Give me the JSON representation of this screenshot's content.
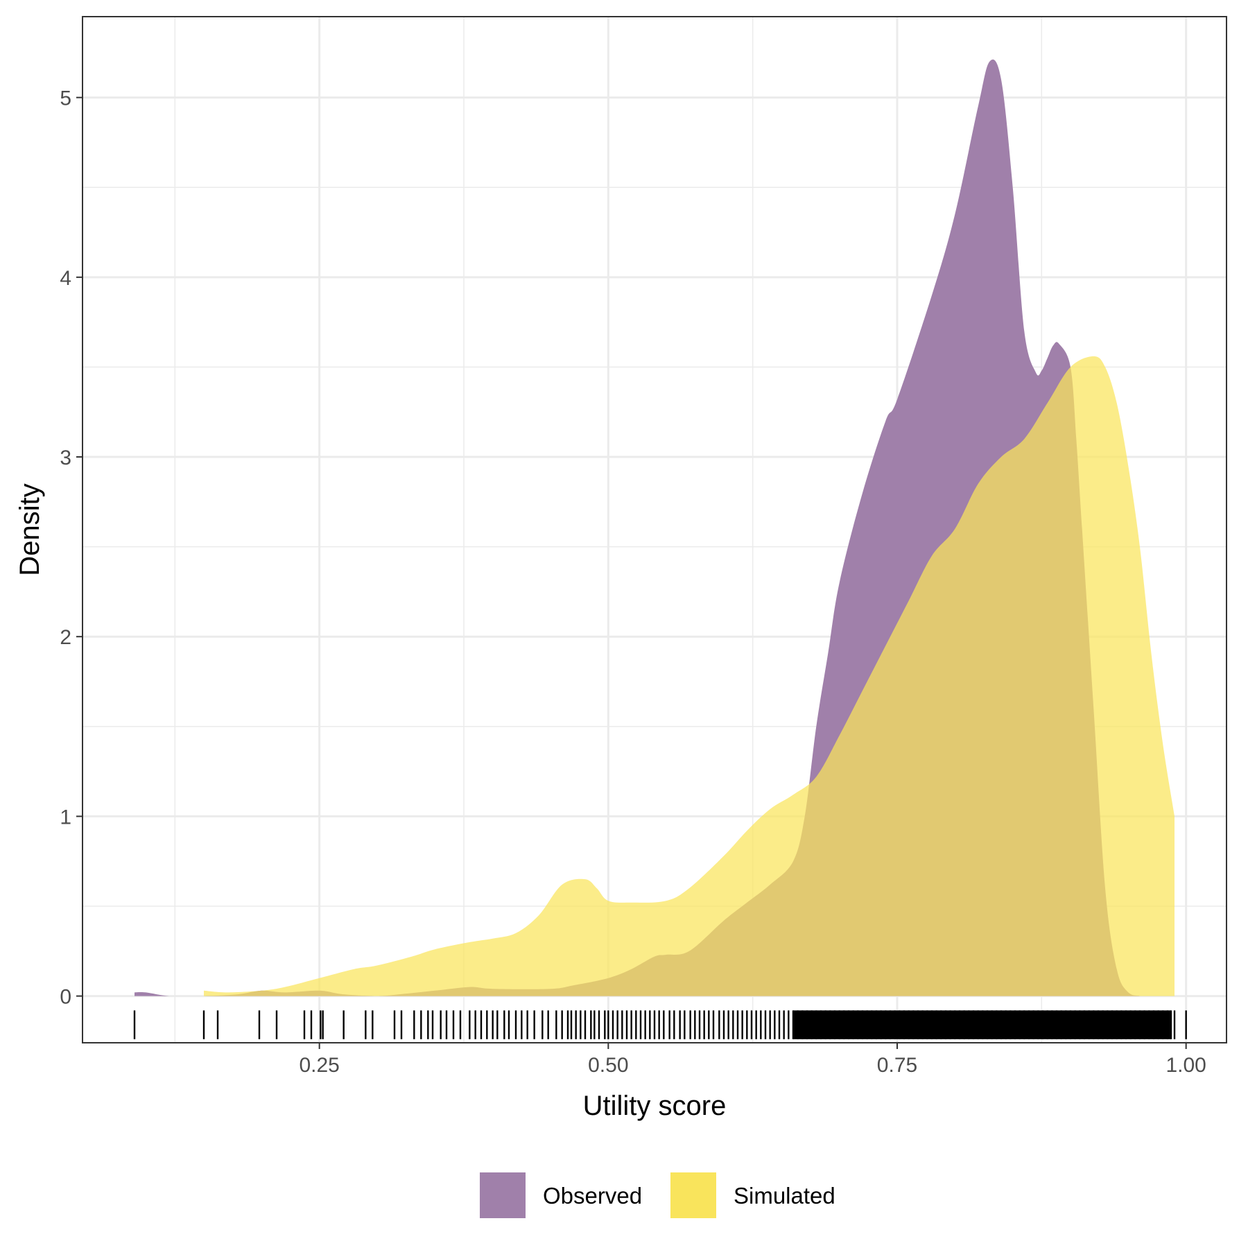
{
  "chart_data": {
    "type": "area",
    "subtype": "density",
    "xlabel": "Utility score",
    "ylabel": "Density",
    "xlim": [
      0.045,
      1.035
    ],
    "ylim": [
      -0.26,
      5.45
    ],
    "x_ticks": [
      0.25,
      0.5,
      0.75,
      1.0
    ],
    "x_tick_labels": [
      "0.25",
      "0.50",
      "0.75",
      "1.00"
    ],
    "y_ticks": [
      0,
      1,
      2,
      3,
      4,
      5
    ],
    "y_tick_labels": [
      "0",
      "1",
      "2",
      "3",
      "4",
      "5"
    ],
    "grid": true,
    "legend": {
      "position": "bottom"
    },
    "series": [
      {
        "name": "Observed",
        "color": "#a080aa",
        "x": [
          0.09,
          0.1,
          0.12,
          0.15,
          0.18,
          0.2,
          0.22,
          0.25,
          0.27,
          0.3,
          0.32,
          0.35,
          0.38,
          0.4,
          0.45,
          0.47,
          0.5,
          0.52,
          0.54,
          0.55,
          0.57,
          0.6,
          0.62,
          0.64,
          0.66,
          0.67,
          0.68,
          0.69,
          0.7,
          0.72,
          0.74,
          0.75,
          0.78,
          0.8,
          0.82,
          0.83,
          0.84,
          0.85,
          0.86,
          0.87,
          0.875,
          0.88,
          0.885,
          0.89,
          0.9,
          0.905,
          0.91,
          0.92,
          0.93,
          0.94,
          0.95,
          0.96,
          0.97
        ],
        "y": [
          0.02,
          0.02,
          0.0,
          0.0,
          0.01,
          0.03,
          0.02,
          0.03,
          0.01,
          0.0,
          0.01,
          0.03,
          0.05,
          0.04,
          0.04,
          0.06,
          0.1,
          0.15,
          0.22,
          0.23,
          0.25,
          0.42,
          0.52,
          0.62,
          0.75,
          1.0,
          1.5,
          1.9,
          2.3,
          2.8,
          3.2,
          3.32,
          3.9,
          4.35,
          4.95,
          5.2,
          5.1,
          4.5,
          3.7,
          3.47,
          3.48,
          3.55,
          3.62,
          3.63,
          3.5,
          3.1,
          2.6,
          1.6,
          0.6,
          0.15,
          0.02,
          0.0,
          0.0
        ]
      },
      {
        "name": "Simulated",
        "color": "#f9e45c",
        "x": [
          0.15,
          0.17,
          0.2,
          0.22,
          0.25,
          0.28,
          0.3,
          0.33,
          0.35,
          0.38,
          0.4,
          0.42,
          0.44,
          0.46,
          0.48,
          0.49,
          0.5,
          0.52,
          0.55,
          0.57,
          0.6,
          0.62,
          0.64,
          0.66,
          0.68,
          0.7,
          0.72,
          0.74,
          0.76,
          0.78,
          0.8,
          0.82,
          0.84,
          0.86,
          0.88,
          0.9,
          0.92,
          0.93,
          0.94,
          0.95,
          0.96,
          0.97,
          0.98,
          0.99
        ],
        "y": [
          0.03,
          0.02,
          0.03,
          0.05,
          0.1,
          0.15,
          0.17,
          0.22,
          0.26,
          0.3,
          0.32,
          0.35,
          0.45,
          0.62,
          0.65,
          0.6,
          0.53,
          0.52,
          0.53,
          0.6,
          0.78,
          0.92,
          1.04,
          1.12,
          1.22,
          1.45,
          1.7,
          1.95,
          2.2,
          2.45,
          2.6,
          2.85,
          3.0,
          3.1,
          3.3,
          3.5,
          3.56,
          3.5,
          3.3,
          2.95,
          2.5,
          1.9,
          1.4,
          1.0
        ]
      }
    ],
    "rug": {
      "color": "#000000",
      "x": [
        0.09,
        0.15,
        0.162,
        0.198,
        0.213,
        0.237,
        0.243,
        0.251,
        0.253,
        0.271,
        0.29,
        0.296,
        0.315,
        0.321,
        0.332,
        0.338,
        0.344,
        0.348,
        0.355,
        0.36,
        0.366,
        0.372,
        0.38,
        0.385,
        0.39,
        0.395,
        0.4,
        0.404,
        0.41,
        0.414,
        0.42,
        0.425,
        0.43,
        0.436,
        0.443,
        0.448,
        0.455,
        0.46,
        0.465,
        0.468,
        0.472,
        0.476,
        0.48,
        0.485,
        0.488,
        0.492,
        0.497,
        0.5,
        0.504,
        0.508,
        0.512,
        0.516,
        0.52,
        0.524,
        0.528,
        0.532,
        0.536,
        0.54,
        0.544,
        0.548,
        0.553,
        0.557,
        0.562,
        0.566,
        0.571,
        0.575,
        0.579,
        0.583,
        0.587,
        0.591,
        0.596,
        0.6,
        0.604,
        0.608,
        0.612,
        0.616,
        0.62,
        0.624,
        0.628,
        0.632,
        0.636,
        0.64,
        0.644,
        0.648,
        0.652,
        0.656,
        0.66,
        0.664,
        0.668,
        0.672,
        0.676,
        0.68,
        0.684,
        0.688,
        0.692,
        0.696,
        0.7,
        0.704,
        0.708,
        0.712,
        0.716,
        0.72,
        0.724,
        0.728,
        0.732,
        0.736,
        0.74,
        0.744,
        0.748,
        0.752,
        0.756,
        0.76,
        0.764,
        0.768,
        0.772,
        0.776,
        0.78,
        0.784,
        0.788,
        0.792,
        0.796,
        0.8,
        0.804,
        0.808,
        0.812,
        0.816,
        0.82,
        0.824,
        0.828,
        0.832,
        0.836,
        0.84,
        0.844,
        0.848,
        0.852,
        0.856,
        0.86,
        0.864,
        0.868,
        0.872,
        0.876,
        0.88,
        0.884,
        0.888,
        0.892,
        0.896,
        0.9,
        0.904,
        0.908,
        0.912,
        0.916,
        0.92,
        0.924,
        0.928,
        0.932,
        0.936,
        0.94,
        0.944,
        0.948,
        0.952,
        0.956,
        0.96,
        0.964,
        0.968,
        0.972,
        0.976,
        0.98,
        0.984,
        0.987,
        0.99,
        1.0
      ]
    }
  }
}
